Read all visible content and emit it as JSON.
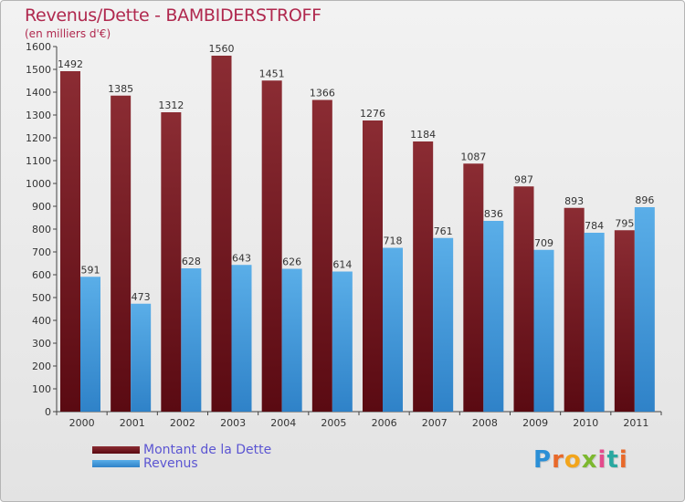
{
  "title": "Revenus/Dette - BAMBIDERSTROFF",
  "subtitle": "(en milliers d'€)",
  "logo_text": "Proxiti",
  "colors": {
    "dette_top": "#8b2c33",
    "dette_bottom": "#5a0a12",
    "revenus_top": "#5aaee8",
    "revenus_bottom": "#2f82c8",
    "title": "#b0284e",
    "legend_text": "#5b55d2"
  },
  "chart_data": {
    "type": "bar",
    "title": "Revenus/Dette - BAMBIDERSTROFF",
    "subtitle": "(en milliers d'€)",
    "categories": [
      "2000",
      "2001",
      "2002",
      "2003",
      "2004",
      "2005",
      "2006",
      "2007",
      "2008",
      "2009",
      "2010",
      "2011"
    ],
    "series": [
      {
        "name": "Montant de la Dette",
        "values": [
          1492,
          1385,
          1312,
          1560,
          1451,
          1366,
          1276,
          1184,
          1087,
          987,
          893,
          795
        ]
      },
      {
        "name": "Revenus",
        "values": [
          591,
          473,
          628,
          643,
          626,
          614,
          718,
          761,
          836,
          709,
          784,
          896
        ]
      }
    ],
    "ylim": [
      0,
      1600
    ],
    "yticks": [
      0,
      100,
      200,
      300,
      400,
      500,
      600,
      700,
      800,
      900,
      1000,
      1100,
      1200,
      1300,
      1400,
      1500,
      1600
    ],
    "grid": false,
    "legend_position": "bottom-left"
  }
}
